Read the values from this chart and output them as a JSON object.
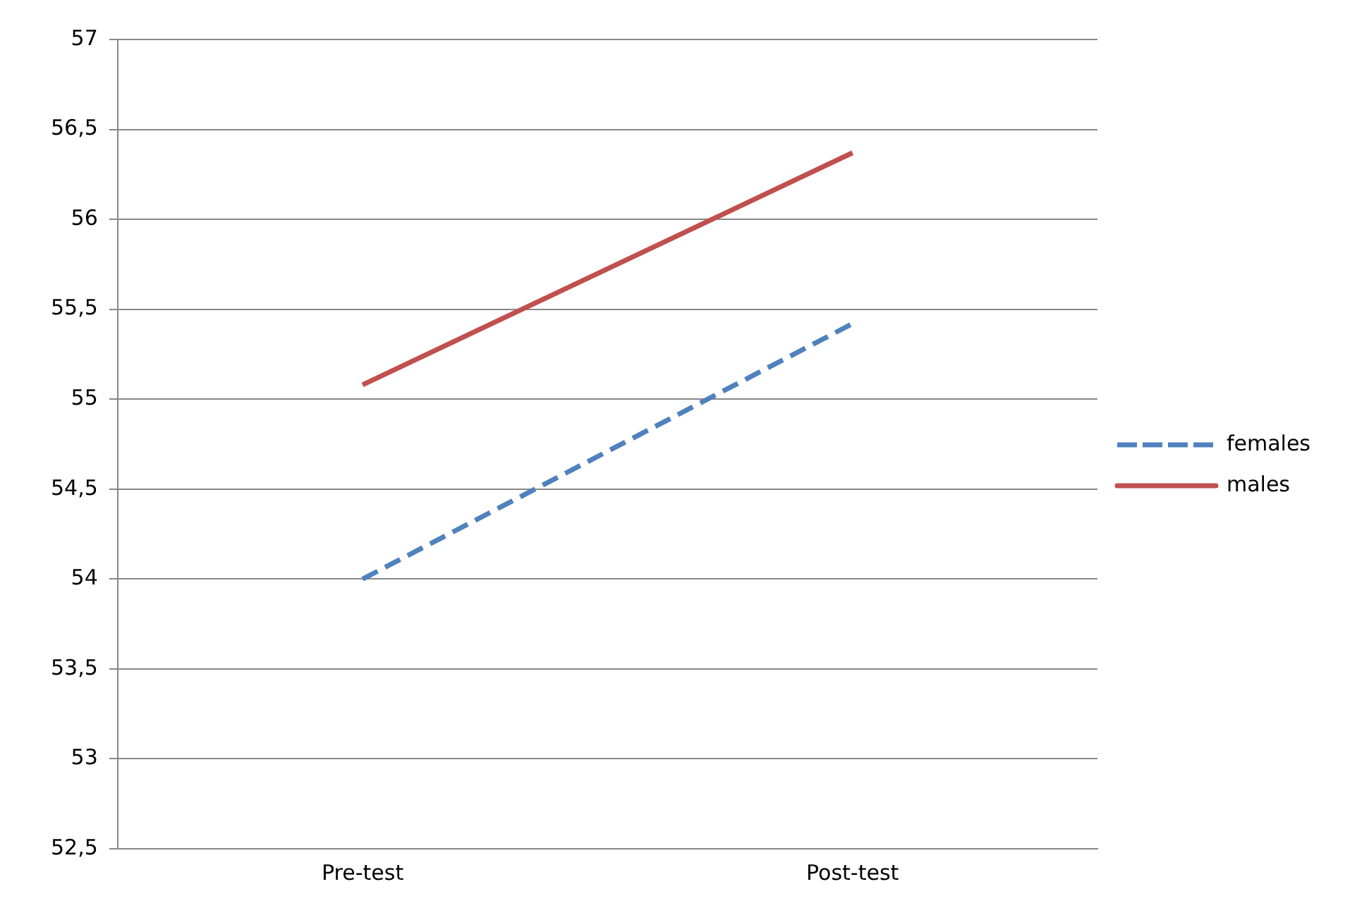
{
  "chart_data": {
    "type": "line",
    "categories": [
      "Pre-test",
      "Post-test"
    ],
    "series": [
      {
        "name": "females",
        "color": "#4f81bd",
        "values": [
          54.0,
          55.42
        ],
        "line_style": "dashed"
      },
      {
        "name": "males",
        "color": "#c0504d",
        "values": [
          55.08,
          56.37
        ],
        "line_style": "solid"
      }
    ],
    "ylim": [
      52.5,
      57
    ],
    "yticks": [
      {
        "value": 52.5,
        "label": "52,5"
      },
      53,
      {
        "value": 53.5,
        "label": "53,5"
      },
      54,
      {
        "value": 54.5,
        "label": "54,5"
      },
      55,
      {
        "value": 55.5,
        "label": "55,5"
      },
      56,
      {
        "value": 56.5,
        "label": "56,5"
      },
      57
    ],
    "grid": "y",
    "legend": "right",
    "marker": "none"
  }
}
